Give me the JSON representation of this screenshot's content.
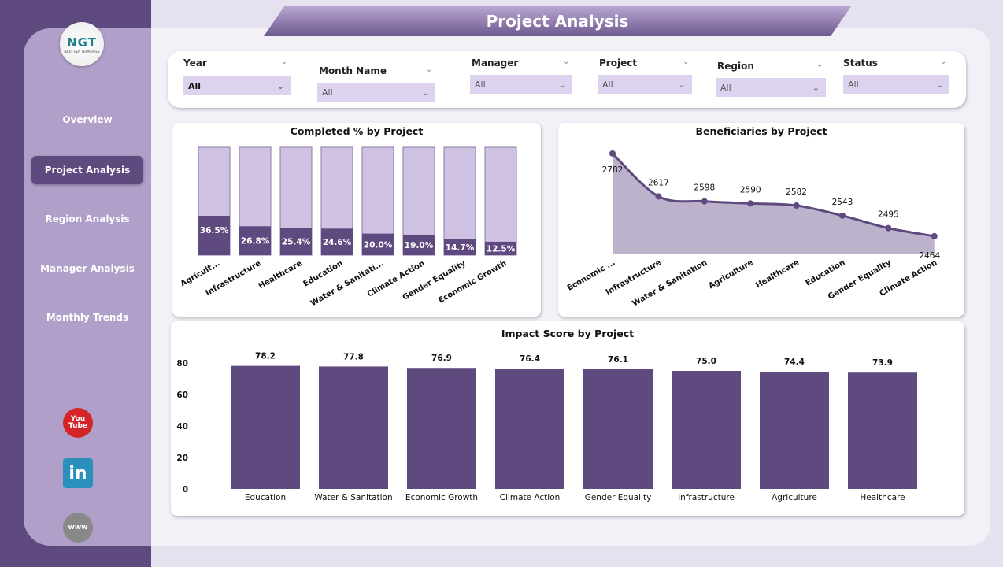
{
  "header": {
    "title": "Project Analysis"
  },
  "logo": {
    "text": "NGT",
    "subtext": "NEXT GEN TEMPLATES"
  },
  "sidebar": {
    "items": [
      {
        "label": "Overview"
      },
      {
        "label": "Project Analysis",
        "active": true
      },
      {
        "label": "Region Analysis"
      },
      {
        "label": "Manager Analysis"
      },
      {
        "label": "Monthly Trends"
      }
    ],
    "social": [
      {
        "icon": "youtube-icon",
        "text": "You Tube"
      },
      {
        "icon": "linkedin-icon",
        "text": "in"
      },
      {
        "icon": "globe-www-icon",
        "text": "www"
      }
    ]
  },
  "filters": [
    {
      "label": "Year",
      "value": "All"
    },
    {
      "label": "Month Name",
      "value": "All"
    },
    {
      "label": "Manager",
      "value": "All"
    },
    {
      "label": "Project",
      "value": "All"
    },
    {
      "label": "Region",
      "value": "All"
    },
    {
      "label": "Status",
      "value": "All"
    }
  ],
  "colors": {
    "accent": "#5f4a7f",
    "light": "#d0c2e2",
    "area": "#bdb2cc"
  },
  "chart_data": [
    {
      "type": "bar",
      "title": "Completed % by Project",
      "categories": [
        "Agricult...",
        "Infrastructure",
        "Healthcare",
        "Education",
        "Water & Sanitati...",
        "Climate Action",
        "Gender Equality",
        "Economic Growth"
      ],
      "values": [
        36.5,
        26.8,
        25.4,
        24.6,
        20.0,
        19.0,
        14.7,
        12.5
      ],
      "labels": [
        "36.5%",
        "26.8%",
        "25.4%",
        "24.6%",
        "20.0%",
        "19.0%",
        "14.7%",
        "12.5%"
      ],
      "ylim": [
        0,
        100
      ],
      "stacked_remainder": true
    },
    {
      "type": "area",
      "title": "Beneficiaries by Project",
      "categories": [
        "Economic ...",
        "Infrastructure",
        "Water & Sanitation",
        "Agriculture",
        "Healthcare",
        "Education",
        "Gender Equality",
        "Climate Action"
      ],
      "values": [
        2782,
        2617,
        2598,
        2590,
        2582,
        2543,
        2495,
        2464
      ]
    },
    {
      "type": "bar",
      "title": "Impact Score by Project",
      "categories": [
        "Education",
        "Water & Sanitation",
        "Economic Growth",
        "Climate Action",
        "Gender Equality",
        "Infrastructure",
        "Agriculture",
        "Healthcare"
      ],
      "values": [
        78.2,
        77.8,
        76.9,
        76.4,
        76.1,
        75.0,
        74.4,
        73.9
      ],
      "labels": [
        "78.2",
        "77.8",
        "76.9",
        "76.4",
        "76.1",
        "75.0",
        "74.4",
        "73.9"
      ],
      "yticks": [
        "0",
        "20",
        "40",
        "60",
        "80"
      ],
      "ylim": [
        0,
        80
      ]
    }
  ]
}
